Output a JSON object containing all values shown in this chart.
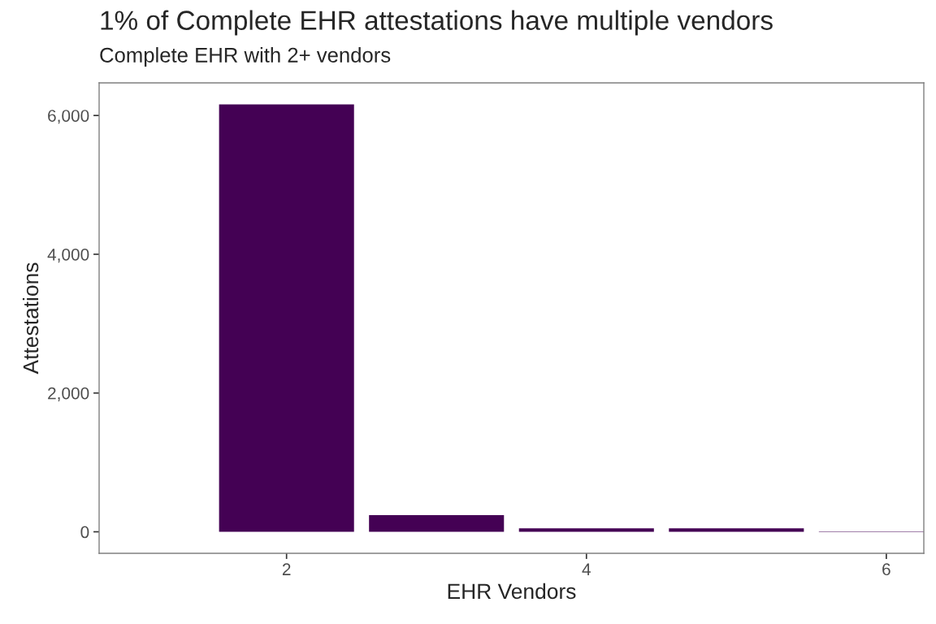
{
  "chart_data": {
    "type": "bar",
    "title": "1% of Complete EHR attestations have multiple vendors",
    "subtitle": "Complete EHR with 2+ vendors",
    "xlabel": "EHR Vendors",
    "ylabel": "Attestations",
    "x": [
      2,
      3,
      4,
      5,
      6
    ],
    "values": [
      6160,
      240,
      50,
      50,
      5
    ],
    "color": "#440154",
    "xlim": [
      0.75,
      6.25
    ],
    "xticks": [
      2,
      4,
      6
    ],
    "ylim": [
      -310,
      6470
    ],
    "yticks": [
      {
        "value": 0,
        "label": "0"
      },
      {
        "value": 2000,
        "label": "2,000"
      },
      {
        "value": 4000,
        "label": "4,000"
      },
      {
        "value": 6000,
        "label": "6,000"
      }
    ],
    "grid": false,
    "legend": false
  }
}
